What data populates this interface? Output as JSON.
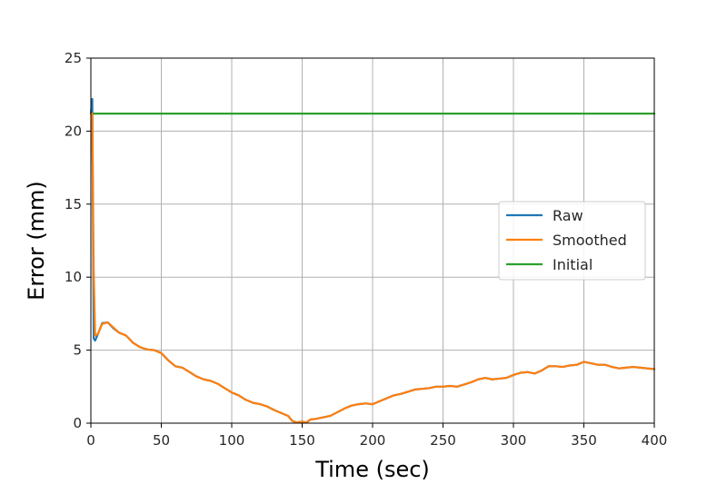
{
  "chart_data": {
    "type": "line",
    "title": "",
    "xlabel": "Time (sec)",
    "ylabel": "Error (mm)",
    "xlim": [
      0,
      400
    ],
    "ylim": [
      0,
      25
    ],
    "x_ticks": [
      0,
      50,
      100,
      150,
      200,
      250,
      300,
      350,
      400
    ],
    "y_ticks": [
      0,
      5,
      10,
      15,
      20,
      25
    ],
    "x_tick_labels": [
      "0",
      "50",
      "100",
      "150",
      "200",
      "250",
      "300",
      "350",
      "400"
    ],
    "y_tick_labels": [
      "0",
      "5",
      "10",
      "15",
      "20",
      "25"
    ],
    "grid": true,
    "legend_position": "center-right",
    "legend": [
      "Raw",
      "Smoothed",
      "Initial"
    ],
    "series": [
      {
        "name": "Raw",
        "color": "#1f77b4",
        "x": [
          0,
          1,
          2,
          3,
          5,
          8,
          12,
          16,
          20,
          25,
          30,
          35,
          40,
          45,
          50,
          55,
          60,
          65,
          70,
          75,
          80,
          85,
          90,
          95,
          100,
          105,
          110,
          115,
          120,
          125,
          130,
          135,
          140,
          143,
          146,
          150,
          153,
          156,
          160,
          165,
          170,
          175,
          180,
          185,
          190,
          195,
          200,
          205,
          210,
          215,
          220,
          225,
          230,
          235,
          240,
          245,
          250,
          255,
          260,
          265,
          270,
          275,
          280,
          285,
          290,
          295,
          300,
          305,
          310,
          315,
          320,
          325,
          330,
          335,
          340,
          345,
          350,
          355,
          360,
          365,
          370,
          375,
          380,
          385,
          390,
          395,
          400
        ],
        "y": [
          21.2,
          22.2,
          5.8,
          5.65,
          6.1,
          6.85,
          6.9,
          6.5,
          6.2,
          6.0,
          5.5,
          5.2,
          5.05,
          5.0,
          4.8,
          4.3,
          3.9,
          3.8,
          3.5,
          3.2,
          3.0,
          2.9,
          2.7,
          2.4,
          2.1,
          1.9,
          1.6,
          1.4,
          1.3,
          1.15,
          0.9,
          0.7,
          0.5,
          0.15,
          0.05,
          0.1,
          0.05,
          0.25,
          0.3,
          0.4,
          0.5,
          0.75,
          1.0,
          1.2,
          1.3,
          1.35,
          1.3,
          1.5,
          1.7,
          1.9,
          2.0,
          2.15,
          2.3,
          2.35,
          2.4,
          2.5,
          2.5,
          2.55,
          2.5,
          2.65,
          2.8,
          3.0,
          3.1,
          3.0,
          3.05,
          3.1,
          3.3,
          3.45,
          3.5,
          3.4,
          3.6,
          3.9,
          3.9,
          3.85,
          3.95,
          4.0,
          4.2,
          4.1,
          4.0,
          4.0,
          3.85,
          3.75,
          3.8,
          3.85,
          3.8,
          3.75,
          3.7
        ]
      },
      {
        "name": "Smoothed",
        "color": "#ff7f0e",
        "x": [
          0,
          1,
          2,
          3,
          5,
          8,
          12,
          16,
          20,
          25,
          30,
          35,
          40,
          45,
          50,
          55,
          60,
          65,
          70,
          75,
          80,
          85,
          90,
          95,
          100,
          105,
          110,
          115,
          120,
          125,
          130,
          135,
          140,
          143,
          146,
          150,
          153,
          156,
          160,
          165,
          170,
          175,
          180,
          185,
          190,
          195,
          200,
          205,
          210,
          215,
          220,
          225,
          230,
          235,
          240,
          245,
          250,
          255,
          260,
          265,
          270,
          275,
          280,
          285,
          290,
          295,
          300,
          305,
          310,
          315,
          320,
          325,
          330,
          335,
          340,
          345,
          350,
          355,
          360,
          365,
          370,
          375,
          380,
          385,
          390,
          395,
          400
        ],
        "y": [
          21.2,
          21.2,
          10.5,
          6.0,
          6.1,
          6.8,
          6.9,
          6.55,
          6.2,
          6.0,
          5.5,
          5.2,
          5.05,
          5.0,
          4.8,
          4.3,
          3.9,
          3.8,
          3.5,
          3.2,
          3.0,
          2.9,
          2.7,
          2.4,
          2.1,
          1.9,
          1.6,
          1.4,
          1.3,
          1.15,
          0.9,
          0.7,
          0.5,
          0.15,
          0.05,
          0.1,
          0.05,
          0.25,
          0.3,
          0.4,
          0.5,
          0.75,
          1.0,
          1.2,
          1.3,
          1.35,
          1.3,
          1.5,
          1.7,
          1.9,
          2.0,
          2.15,
          2.3,
          2.35,
          2.4,
          2.5,
          2.5,
          2.55,
          2.5,
          2.65,
          2.8,
          3.0,
          3.1,
          3.0,
          3.05,
          3.1,
          3.3,
          3.45,
          3.5,
          3.4,
          3.6,
          3.9,
          3.9,
          3.85,
          3.95,
          4.0,
          4.2,
          4.1,
          4.0,
          4.0,
          3.85,
          3.75,
          3.8,
          3.85,
          3.8,
          3.75,
          3.7
        ]
      },
      {
        "name": "Initial",
        "color": "#2ca02c",
        "x": [
          0,
          400
        ],
        "y": [
          21.2,
          21.2
        ]
      }
    ]
  }
}
